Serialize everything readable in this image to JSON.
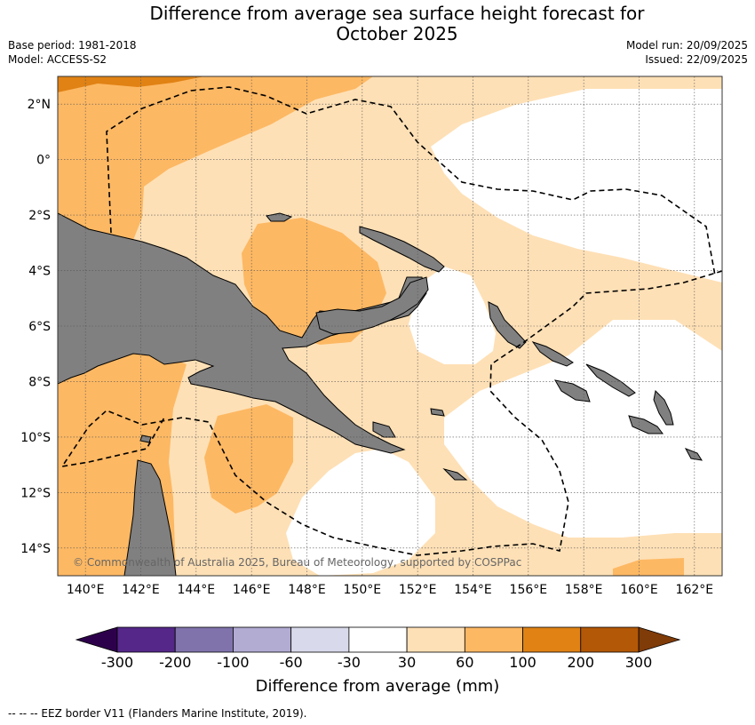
{
  "title": {
    "line1": "Difference from average sea surface height forecast for",
    "line2": "October 2025"
  },
  "meta": {
    "base_period": "Base period: 1981-2018",
    "model": "Model: ACCESS-S2",
    "model_run": "Model run: 20/09/2025",
    "issued": "Issued: 22/09/2025"
  },
  "map": {
    "lat_labels": [
      "2°N",
      "0°",
      "2°S",
      "4°S",
      "6°S",
      "8°S",
      "10°S",
      "12°S",
      "14°S"
    ],
    "lat_values": [
      2,
      0,
      -2,
      -4,
      -6,
      -8,
      -10,
      -12,
      -14
    ],
    "lon_labels": [
      "140°E",
      "142°E",
      "144°E",
      "146°E",
      "148°E",
      "150°E",
      "152°E",
      "154°E",
      "156°E",
      "158°E",
      "160°E",
      "162°E"
    ],
    "lon_values": [
      140,
      142,
      144,
      146,
      148,
      150,
      152,
      154,
      156,
      158,
      160,
      162
    ],
    "lon_range": [
      139,
      163
    ],
    "lat_range": [
      -15,
      3
    ],
    "copyright": "© Commonwealth of Australia 2025, Bureau of Meteorology, supported by COSPPac",
    "land_color": "#808080",
    "grid": true
  },
  "colorbar": {
    "label": "Difference from average (mm)",
    "ticks": [
      "-300",
      "-200",
      "-100",
      "-60",
      "-30",
      "30",
      "60",
      "100",
      "200",
      "300"
    ],
    "colors": [
      "#542788",
      "#8073ac",
      "#b2abd2",
      "#d8daeb",
      "#ffffff",
      "#fee0b6",
      "#fdb863",
      "#e08214",
      "#b35806"
    ],
    "under_color": "#2d004b",
    "over_color": "#7f3b08"
  },
  "footer": {
    "text": "--  --  -- EEZ border V11 (Flanders Marine Institute, 2019)."
  }
}
